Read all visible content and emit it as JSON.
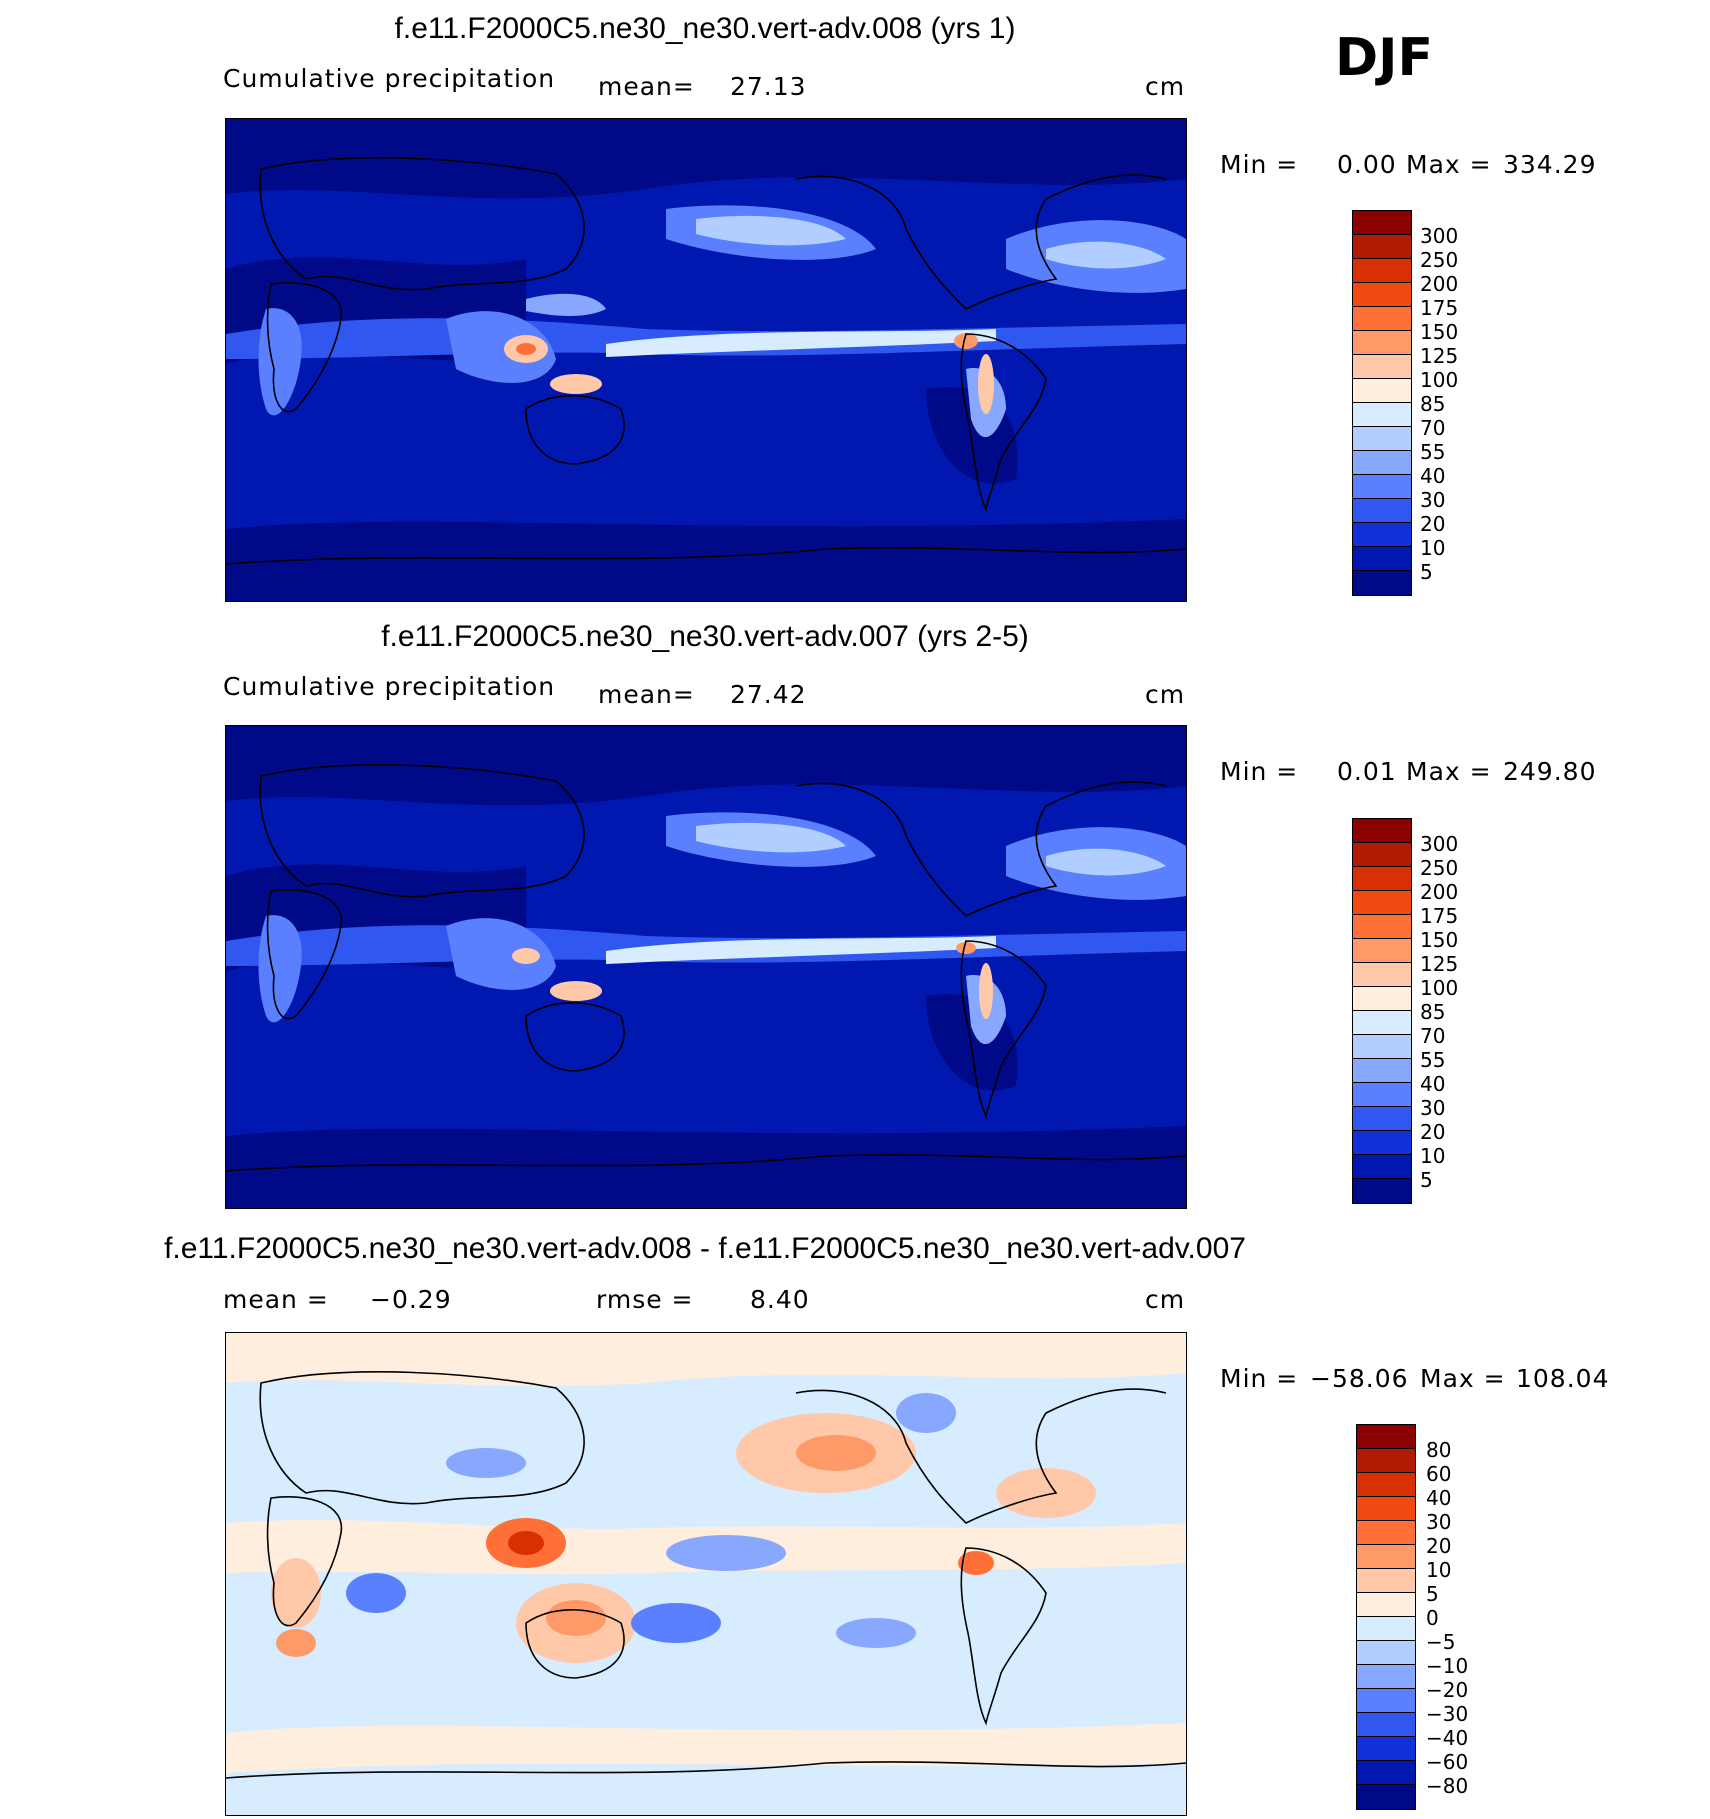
{
  "season": "DJF",
  "panels": [
    {
      "title": "f.e11.F2000C5.ne30_ne30.vert-adv.008 (yrs 1)",
      "left_label": "Cumulative  precipitation",
      "mid_label": "mean=",
      "mid_value": "27.13",
      "units": "cm",
      "min_label": "Min  =",
      "min_value": "0.00",
      "max_label": "Max  =",
      "max_value": "334.29",
      "levels": [
        "300",
        "250",
        "200",
        "175",
        "150",
        "125",
        "100",
        "85",
        "70",
        "55",
        "40",
        "30",
        "20",
        "10",
        "5"
      ]
    },
    {
      "title": "f.e11.F2000C5.ne30_ne30.vert-adv.007 (yrs 2-5)",
      "left_label": "Cumulative  precipitation",
      "mid_label": "mean=",
      "mid_value": "27.42",
      "units": "cm",
      "min_label": "Min  =",
      "min_value": "0.01",
      "max_label": "Max  =",
      "max_value": "249.80",
      "levels": [
        "300",
        "250",
        "200",
        "175",
        "150",
        "125",
        "100",
        "85",
        "70",
        "55",
        "40",
        "30",
        "20",
        "10",
        "5"
      ]
    },
    {
      "title": "f.e11.F2000C5.ne30_ne30.vert-adv.008 - f.e11.F2000C5.ne30_ne30.vert-adv.007",
      "left_label": "mean  =",
      "left_value": "−0.29",
      "mid_label": "rmse  =",
      "mid_value": "8.40",
      "units": "cm",
      "min_label": "Min  =",
      "min_value": "−58.06",
      "max_label": "Max  =",
      "max_value": "108.04",
      "levels": [
        "80",
        "60",
        "40",
        "30",
        "20",
        "10",
        "5",
        "0",
        "−5",
        "−10",
        "−20",
        "−30",
        "−40",
        "−60",
        "−80"
      ]
    }
  ],
  "colors": {
    "precip_scale": [
      "#8b0000",
      "#b01a00",
      "#d83000",
      "#f04a10",
      "#ff7038",
      "#ff9a68",
      "#ffc8a8",
      "#ffeedd",
      "#d8ecff",
      "#b0ceff",
      "#88a8ff",
      "#5a80ff",
      "#3058f0",
      "#1030d8",
      "#0018b0",
      "#000a88"
    ],
    "diff_scale": [
      "#8b0000",
      "#b01a00",
      "#d83000",
      "#f04a10",
      "#ff7038",
      "#ff9a68",
      "#ffc8a8",
      "#ffeedd",
      "#d8ecff",
      "#b0ceff",
      "#88a8ff",
      "#5a80ff",
      "#3058f0",
      "#1030d8",
      "#0018b0",
      "#000a88"
    ]
  }
}
